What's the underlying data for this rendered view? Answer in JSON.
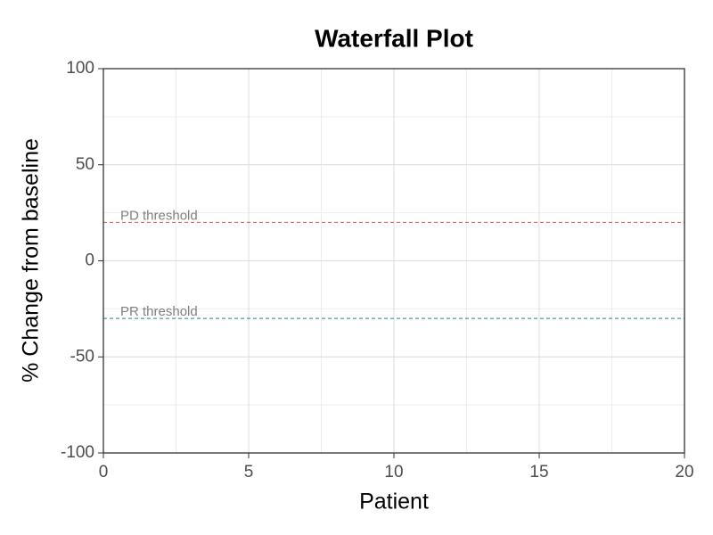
{
  "chart_data": {
    "type": "waterfall",
    "title": "Waterfall Plot",
    "x_label": "Patient",
    "y_label": "% Change from baseline",
    "xlim": [
      0,
      20
    ],
    "xticks": [
      0,
      5,
      10,
      15,
      20
    ],
    "ylim": [
      -100,
      100
    ],
    "yticks": [
      -100,
      -50,
      0,
      50,
      100
    ],
    "x_minor_ticks": [
      2.5,
      7.5,
      12.5,
      17.5
    ],
    "y_minor_ticks": [
      -75,
      -25,
      25,
      75
    ],
    "grid": true,
    "reference_lines": [
      {
        "value": 20,
        "label": "PD threshold",
        "color": "#d9534f"
      },
      {
        "value": -30,
        "label": "PR threshold",
        "color": "#2a7f8f"
      }
    ]
  }
}
